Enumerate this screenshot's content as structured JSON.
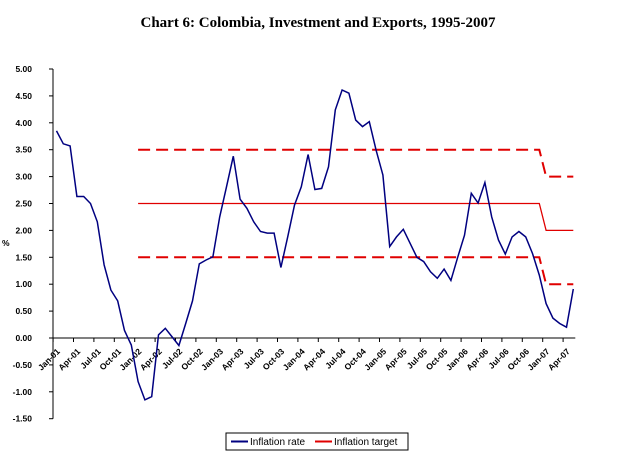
{
  "chart_data": {
    "type": "line",
    "title": "Chart 6: Colombia, Investment and Exports, 1995-2007",
    "xlabel": "",
    "ylabel": "%",
    "ylim": [
      -1.5,
      5.0
    ],
    "yticks": [
      "5.00",
      "4.50",
      "4.00",
      "3.50",
      "3.00",
      "2.50",
      "2.00",
      "1.50",
      "1.00",
      "0.50",
      "0.00",
      "-0.50",
      "-1.00",
      "-1.50"
    ],
    "xtick_labels": [
      "Jan-01",
      "Apr-01",
      "Jul-01",
      "Oct-01",
      "Jan-02",
      "Apr-02",
      "Jul-02",
      "Oct-02",
      "Jan-03",
      "Apr-03",
      "Jul-03",
      "Oct-03",
      "Jan-04",
      "Apr-04",
      "Jul-04",
      "Oct-04",
      "Jan-05",
      "Apr-05",
      "Jul-05",
      "Oct-05",
      "Jan-06",
      "Apr-06",
      "Jul-06",
      "Oct-06",
      "Jan-07",
      "Apr-07"
    ],
    "x_frequency": "monthly, Jan-01 to May-07",
    "legend": {
      "position": "bottom",
      "entries": [
        "Inflation rate",
        "Inflation target"
      ]
    },
    "colors": {
      "inflation_rate": "#000080",
      "inflation_target": "#e00000"
    },
    "series": [
      {
        "name": "Inflation rate",
        "values": [
          3.85,
          3.61,
          3.57,
          2.63,
          2.63,
          2.5,
          2.16,
          1.36,
          0.89,
          0.69,
          0.14,
          -0.13,
          -0.81,
          -1.15,
          -1.09,
          0.06,
          0.18,
          0.02,
          -0.14,
          0.27,
          0.69,
          1.38,
          1.45,
          1.51,
          2.25,
          2.81,
          3.38,
          2.58,
          2.41,
          2.16,
          1.98,
          1.95,
          1.95,
          1.31,
          1.88,
          2.47,
          2.81,
          3.41,
          2.76,
          2.78,
          3.18,
          4.24,
          4.61,
          4.55,
          4.05,
          3.93,
          4.02,
          3.49,
          3.03,
          1.7,
          1.88,
          2.02,
          1.76,
          1.5,
          1.42,
          1.23,
          1.11,
          1.28,
          1.07,
          1.5,
          1.91,
          2.69,
          2.51,
          2.89,
          2.25,
          1.82,
          1.56,
          1.88,
          1.98,
          1.88,
          1.57,
          1.17,
          0.64,
          0.37,
          0.27,
          0.2,
          0.91
        ]
      },
      {
        "name": "Inflation target",
        "start_index": 12,
        "values_by_period": [
          {
            "from": "Jan-02",
            "to": "Dec-06",
            "value": 2.5
          },
          {
            "from": "Jan-07",
            "to": "May-07",
            "value": 2.0
          }
        ]
      },
      {
        "name": "Target band upper",
        "legend": false,
        "dashed": true,
        "values_by_period": [
          {
            "from": "Jan-02",
            "to": "Dec-06",
            "value": 3.5
          },
          {
            "from": "Jan-07",
            "to": "May-07",
            "value": 3.0
          }
        ]
      },
      {
        "name": "Target band lower",
        "legend": false,
        "dashed": true,
        "values_by_period": [
          {
            "from": "Jan-02",
            "to": "Dec-06",
            "value": 1.5
          },
          {
            "from": "Jan-07",
            "to": "May-07",
            "value": 1.0
          }
        ]
      }
    ]
  }
}
